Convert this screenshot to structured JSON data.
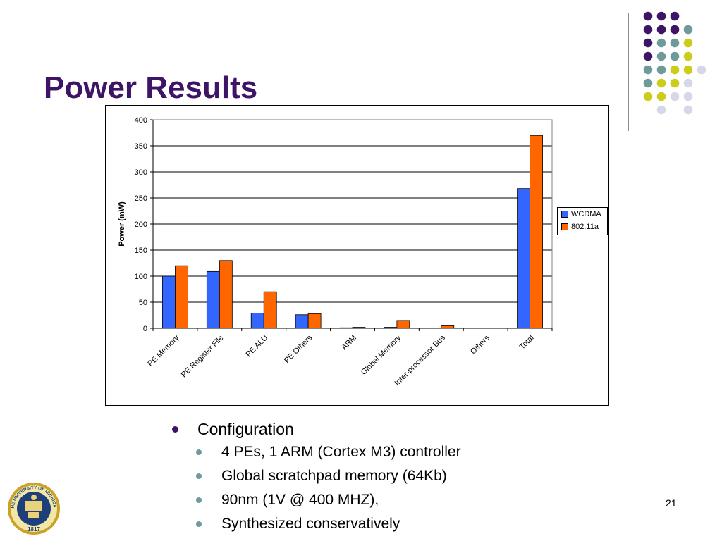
{
  "slide": {
    "title": "Power Results",
    "page_number": "21"
  },
  "decor": {
    "dot_colors": {
      "purple": "#3d1466",
      "teal": "#6f9a9a",
      "yellow": "#cccc1a",
      "lavender": "#d7d7ea"
    },
    "dot_grid": [
      [
        "purple",
        "purple",
        "purple",
        ""
      ],
      [
        "purple",
        "purple",
        "purple",
        "teal"
      ],
      [
        "purple",
        "teal",
        "teal",
        "yellow"
      ],
      [
        "purple",
        "teal",
        "teal",
        "yellow"
      ],
      [
        "teal",
        "teal",
        "yellow",
        "yellow",
        "lavender"
      ],
      [
        "teal",
        "yellow",
        "yellow",
        "lavender"
      ],
      [
        "yellow",
        "yellow",
        "lavender",
        "lavender"
      ],
      [
        "",
        "lavender",
        "",
        "lavender"
      ]
    ]
  },
  "logo": {
    "text": "THE UNIVERSITY OF MICHIGAN",
    "year": "1817"
  },
  "chart_data": {
    "type": "bar",
    "ylabel": "Power (mW)",
    "xlabel": "",
    "ylim": [
      0,
      400
    ],
    "yticks": [
      0,
      50,
      100,
      150,
      200,
      250,
      300,
      350,
      400
    ],
    "grid": true,
    "legend_position": "right",
    "categories": [
      "PE Memory",
      "PE Register File",
      "PE ALU",
      "PE Others",
      "ARM",
      "Global Memory",
      "Inter-processor Bus",
      "Others",
      "Total"
    ],
    "series": [
      {
        "name": "WCDMA",
        "color": "#3366ff",
        "values": [
          100,
          109,
          29,
          26,
          1,
          2,
          0,
          0,
          268
        ]
      },
      {
        "name": "802.11a",
        "color": "#ff6600",
        "values": [
          120,
          130,
          70,
          28,
          2,
          15,
          5,
          0,
          370
        ]
      }
    ]
  },
  "bullets": {
    "level1": "Configuration",
    "level2": [
      "4 PEs, 1 ARM (Cortex M3) controller",
      "Global scratchpad memory (64Kb)",
      "90nm (1V @ 400 MHZ),",
      "Synthesized conservatively"
    ]
  }
}
